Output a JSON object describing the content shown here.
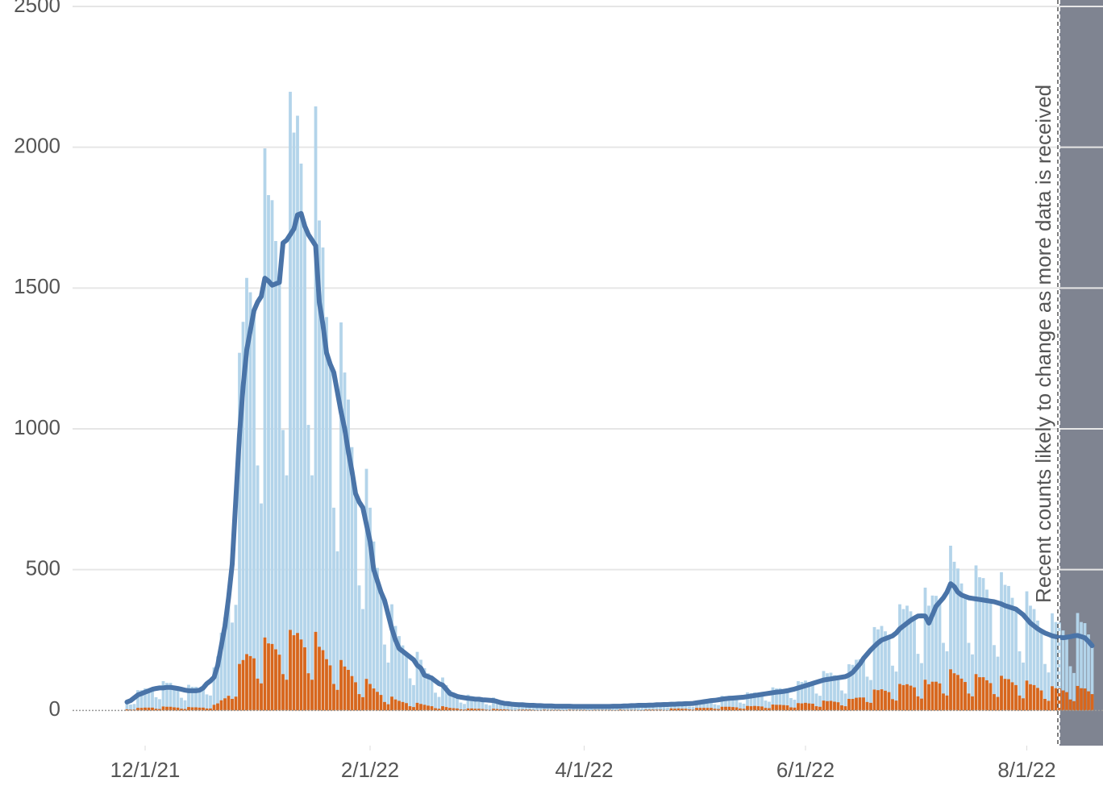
{
  "chart_data": {
    "type": "bar",
    "x": [
      "11/26/21",
      "11/27/21",
      "11/28/21",
      "11/29/21",
      "11/30/21",
      "12/1/21",
      "12/2/21",
      "12/3/21",
      "12/4/21",
      "12/5/21",
      "12/6/21",
      "12/7/21",
      "12/8/21",
      "12/9/21",
      "12/10/21",
      "12/11/21",
      "12/12/21",
      "12/13/21",
      "12/14/21",
      "12/15/21",
      "12/16/21",
      "12/17/21",
      "12/18/21",
      "12/19/21",
      "12/20/21",
      "12/21/21",
      "12/22/21",
      "12/23/21",
      "12/24/21",
      "12/25/21",
      "12/26/21",
      "12/27/21",
      "12/28/21",
      "12/29/21",
      "12/30/21",
      "12/31/21",
      "1/1/22",
      "1/2/22",
      "1/3/22",
      "1/4/22",
      "1/5/22",
      "1/6/22",
      "1/7/22",
      "1/8/22",
      "1/9/22",
      "1/10/22",
      "1/11/22",
      "1/12/22",
      "1/13/22",
      "1/14/22",
      "1/15/22",
      "1/16/22",
      "1/17/22",
      "1/18/22",
      "1/19/22",
      "1/20/22",
      "1/21/22",
      "1/22/22",
      "1/23/22",
      "1/24/22",
      "1/25/22",
      "1/26/22",
      "1/27/22",
      "1/28/22",
      "1/29/22",
      "1/30/22",
      "1/31/22",
      "2/1/22",
      "2/2/22",
      "2/3/22",
      "2/4/22",
      "2/5/22",
      "2/6/22",
      "2/7/22",
      "2/8/22",
      "2/9/22",
      "2/10/22",
      "2/11/22",
      "2/12/22",
      "2/13/22",
      "2/14/22",
      "2/15/22",
      "2/16/22",
      "2/17/22",
      "2/18/22",
      "2/19/22",
      "2/20/22",
      "2/21/22",
      "2/22/22",
      "2/23/22",
      "2/24/22",
      "2/25/22",
      "2/26/22",
      "2/27/22",
      "2/28/22",
      "3/1/22",
      "3/2/22",
      "3/3/22",
      "3/4/22",
      "3/5/22",
      "3/6/22",
      "3/7/22",
      "3/8/22",
      "3/9/22",
      "3/10/22",
      "3/11/22",
      "3/12/22",
      "3/13/22",
      "3/14/22",
      "3/15/22",
      "3/16/22",
      "3/17/22",
      "3/18/22",
      "3/19/22",
      "3/20/22",
      "3/21/22",
      "3/22/22",
      "3/23/22",
      "3/24/22",
      "3/25/22",
      "3/26/22",
      "3/27/22",
      "3/28/22",
      "3/29/22",
      "3/30/22",
      "3/31/22",
      "4/1/22",
      "4/2/22",
      "4/3/22",
      "4/4/22",
      "4/5/22",
      "4/6/22",
      "4/7/22",
      "4/8/22",
      "4/9/22",
      "4/10/22",
      "4/11/22",
      "4/12/22",
      "4/13/22",
      "4/14/22",
      "4/15/22",
      "4/16/22",
      "4/17/22",
      "4/18/22",
      "4/19/22",
      "4/20/22",
      "4/21/22",
      "4/22/22",
      "4/23/22",
      "4/24/22",
      "4/25/22",
      "4/26/22",
      "4/27/22",
      "4/28/22",
      "4/29/22",
      "4/30/22",
      "5/1/22",
      "5/2/22",
      "5/3/22",
      "5/4/22",
      "5/5/22",
      "5/6/22",
      "5/7/22",
      "5/8/22",
      "5/9/22",
      "5/10/22",
      "5/11/22",
      "5/12/22",
      "5/13/22",
      "5/14/22",
      "5/15/22",
      "5/16/22",
      "5/17/22",
      "5/18/22",
      "5/19/22",
      "5/20/22",
      "5/21/22",
      "5/22/22",
      "5/23/22",
      "5/24/22",
      "5/25/22",
      "5/26/22",
      "5/27/22",
      "5/28/22",
      "5/29/22",
      "5/30/22",
      "5/31/22",
      "6/1/22",
      "6/2/22",
      "6/3/22",
      "6/4/22",
      "6/5/22",
      "6/6/22",
      "6/7/22",
      "6/8/22",
      "6/9/22",
      "6/10/22",
      "6/11/22",
      "6/12/22",
      "6/13/22",
      "6/14/22",
      "6/15/22",
      "6/16/22",
      "6/17/22",
      "6/18/22",
      "6/19/22",
      "6/20/22",
      "6/21/22",
      "6/22/22",
      "6/23/22",
      "6/24/22",
      "6/25/22",
      "6/26/22",
      "6/27/22",
      "6/28/22",
      "6/29/22",
      "6/30/22",
      "7/1/22",
      "7/2/22",
      "7/3/22",
      "7/4/22",
      "7/5/22",
      "7/6/22",
      "7/7/22",
      "7/8/22",
      "7/9/22",
      "7/10/22",
      "7/11/22",
      "7/12/22",
      "7/13/22",
      "7/14/22",
      "7/15/22",
      "7/16/22",
      "7/17/22",
      "7/18/22",
      "7/19/22",
      "7/20/22",
      "7/21/22",
      "7/22/22",
      "7/23/22",
      "7/24/22",
      "7/25/22",
      "7/26/22",
      "7/27/22",
      "7/28/22",
      "7/29/22",
      "7/30/22",
      "7/31/22",
      "8/1/22",
      "8/2/22",
      "8/3/22",
      "8/4/22",
      "8/5/22",
      "8/6/22",
      "8/7/22",
      "8/8/22",
      "8/9/22",
      "8/10/22",
      "8/11/22",
      "8/12/22",
      "8/13/22",
      "8/14/22",
      "8/15/22",
      "8/16/22",
      "8/17/22",
      "8/18/22",
      "8/19/22"
    ],
    "series": [
      {
        "color": "#b3d4ea",
        "values": [
          30,
          21,
          23,
          72,
          72,
          78,
          77,
          75,
          47,
          40,
          104,
          98,
          98,
          88,
          78,
          45,
          36,
          91,
          84,
          84,
          79,
          80,
          57,
          53,
          153,
          192,
          276,
          330,
          400,
          312,
          375,
          1270,
          1380,
          1536,
          1485,
          1420,
          870,
          735,
          1996,
          1830,
          1812,
          1667,
          1520,
          996,
          835,
          2197,
          2052,
          2112,
          1942,
          1720,
          1014,
          835,
          2145,
          1740,
          1644,
          1397,
          1230,
          720,
          565,
          1378,
          1200,
          1104,
          935,
          770,
          444,
          360,
          858,
          720,
          600,
          506,
          420,
          234,
          170,
          377,
          300,
          264,
          231,
          200,
          114,
          90,
          208,
          180,
          150,
          132,
          115,
          63,
          48,
          117,
          90,
          72,
          61,
          50,
          28,
          23,
          56,
          50,
          48,
          44,
          38,
          22,
          18,
          46,
          38,
          34,
          28,
          24,
          13,
          11,
          26,
          24,
          23,
          20,
          18,
          10,
          9,
          21,
          19,
          19,
          17,
          15,
          9,
          8,
          20,
          17,
          17,
          15,
          14,
          8,
          7,
          18,
          17,
          17,
          15,
          14,
          9,
          8,
          20,
          19,
          19,
          19,
          17,
          11,
          9,
          23,
          23,
          23,
          22,
          20,
          13,
          11,
          29,
          26,
          28,
          25,
          24,
          14,
          13,
          35,
          35,
          37,
          36,
          35,
          22,
          19,
          52,
          50,
          52,
          48,
          45,
          28,
          24,
          64,
          61,
          64,
          61,
          57,
          35,
          31,
          82,
          78,
          79,
          75,
          70,
          44,
          38,
          104,
          101,
          106,
          101,
          96,
          60,
          52,
          140,
          132,
          134,
          125,
          116,
          71,
          60,
          164,
          162,
          180,
          182,
          185,
          120,
          108,
          296,
          288,
          300,
          281,
          260,
          159,
          138,
          377,
          360,
          372,
          352,
          328,
          201,
          168,
          436,
          372,
          408,
          407,
          385,
          240,
          210,
          585,
          528,
          504,
          451,
          405,
          240,
          199,
          515,
          473,
          470,
          429,
          388,
          232,
          191,
          491,
          446,
          442,
          400,
          360,
          210,
          170,
          423,
          372,
          360,
          319,
          282,
          165,
          135,
          345,
          314,
          312,
          284,
          260,
          157,
          133,
          346,
          314,
          310,
          270,
          230
        ]
      },
      {
        "color": "#d8661c",
        "values": [
          4,
          3,
          3,
          9,
          9,
          10,
          10,
          10,
          6,
          5,
          14,
          13,
          13,
          11,
          10,
          6,
          5,
          12,
          11,
          11,
          10,
          10,
          7,
          7,
          20,
          25,
          36,
          43,
          52,
          41,
          49,
          165,
          179,
          200,
          193,
          185,
          113,
          96,
          259,
          238,
          236,
          217,
          198,
          129,
          109,
          286,
          267,
          275,
          252,
          224,
          132,
          109,
          279,
          226,
          214,
          182,
          160,
          94,
          73,
          179,
          156,
          144,
          122,
          100,
          58,
          47,
          112,
          94,
          78,
          66,
          55,
          30,
          22,
          49,
          39,
          34,
          30,
          26,
          15,
          12,
          27,
          23,
          20,
          17,
          15,
          8,
          6,
          15,
          12,
          9,
          8,
          7,
          4,
          3,
          7,
          7,
          6,
          6,
          5,
          3,
          2,
          6,
          5,
          4,
          4,
          3,
          2,
          1,
          3,
          3,
          3,
          3,
          2,
          1,
          1,
          3,
          2,
          2,
          2,
          2,
          1,
          1,
          3,
          2,
          2,
          2,
          2,
          1,
          1,
          2,
          2,
          2,
          2,
          2,
          1,
          1,
          3,
          2,
          2,
          2,
          2,
          1,
          1,
          3,
          3,
          3,
          3,
          3,
          2,
          1,
          7,
          6,
          7,
          6,
          6,
          4,
          3,
          9,
          9,
          9,
          9,
          9,
          6,
          5,
          13,
          13,
          13,
          12,
          11,
          7,
          6,
          16,
          15,
          16,
          15,
          14,
          9,
          8,
          21,
          20,
          20,
          19,
          18,
          11,
          10,
          26,
          25,
          27,
          25,
          24,
          15,
          13,
          35,
          33,
          34,
          31,
          29,
          18,
          15,
          41,
          41,
          45,
          46,
          46,
          30,
          27,
          74,
          72,
          75,
          70,
          65,
          40,
          35,
          94,
          90,
          93,
          88,
          82,
          50,
          42,
          109,
          93,
          102,
          102,
          96,
          60,
          53,
          146,
          132,
          126,
          113,
          101,
          60,
          50,
          129,
          118,
          118,
          107,
          97,
          58,
          48,
          123,
          112,
          111,
          100,
          90,
          53,
          43,
          106,
          93,
          90,
          80,
          71,
          41,
          34,
          86,
          79,
          78,
          71,
          65,
          39,
          33,
          87,
          79,
          78,
          68,
          58
        ]
      },
      {
        "type": "line",
        "color": "#4a74a8",
        "values": [
          30,
          35,
          45,
          55,
          60,
          65,
          70,
          75,
          78,
          80,
          80,
          82,
          82,
          80,
          78,
          75,
          72,
          70,
          70,
          70,
          72,
          80,
          95,
          105,
          118,
          160,
          230,
          300,
          400,
          520,
          750,
          977,
          1150,
          1280,
          1350,
          1420,
          1450,
          1470,
          1535,
          1525,
          1510,
          1515,
          1520,
          1660,
          1670,
          1690,
          1710,
          1760,
          1765,
          1720,
          1690,
          1670,
          1650,
          1450,
          1370,
          1270,
          1230,
          1200,
          1130,
          1060,
          1000,
          920,
          850,
          770,
          740,
          720,
          660,
          600,
          500,
          460,
          420,
          390,
          340,
          290,
          250,
          220,
          210,
          200,
          190,
          180,
          160,
          150,
          125,
          120,
          115,
          105,
          95,
          90,
          75,
          60,
          55,
          50,
          47,
          45,
          43,
          42,
          40,
          40,
          38,
          37,
          36,
          35,
          32,
          28,
          25,
          24,
          22,
          21,
          20,
          20,
          19,
          18,
          18,
          17,
          17,
          16,
          16,
          16,
          15,
          15,
          15,
          15,
          15,
          14,
          14,
          14,
          14,
          14,
          14,
          14,
          14,
          14,
          14,
          14,
          15,
          15,
          15,
          16,
          16,
          17,
          17,
          18,
          18,
          18,
          19,
          19,
          20,
          20,
          21,
          21,
          22,
          22,
          23,
          23,
          24,
          24,
          25,
          27,
          29,
          31,
          33,
          35,
          36,
          38,
          40,
          42,
          43,
          44,
          45,
          46,
          47,
          49,
          51,
          53,
          55,
          57,
          59,
          61,
          63,
          65,
          66,
          68,
          70,
          73,
          76,
          80,
          84,
          88,
          92,
          96,
          100,
          104,
          108,
          110,
          112,
          114,
          116,
          118,
          120,
          126,
          135,
          150,
          165,
          185,
          200,
          215,
          228,
          240,
          250,
          255,
          260,
          265,
          275,
          290,
          300,
          310,
          320,
          328,
          335,
          336,
          335,
          310,
          340,
          370,
          385,
          400,
          420,
          450,
          440,
          420,
          410,
          405,
          400,
          398,
          396,
          394,
          392,
          390,
          388,
          386,
          382,
          378,
          372,
          368,
          364,
          360,
          350,
          340,
          325,
          310,
          300,
          290,
          282,
          275,
          270,
          265,
          262,
          260,
          258,
          260,
          262,
          265,
          266,
          262,
          258,
          245,
          230
        ]
      }
    ],
    "xlim": [
      "11/11/21",
      "8/22/22"
    ],
    "xticks": [
      "12/1/21",
      "2/1/22",
      "4/1/22",
      "6/1/22",
      "8/1/22"
    ],
    "ylim": [
      -125,
      2500
    ],
    "yticks": [
      0,
      500,
      1000,
      1500,
      2000,
      2500
    ],
    "grid": true,
    "annotation": {
      "text": "Recent counts likely to change as more data is received",
      "from": "8/10/22",
      "color": "#7f8491"
    }
  }
}
